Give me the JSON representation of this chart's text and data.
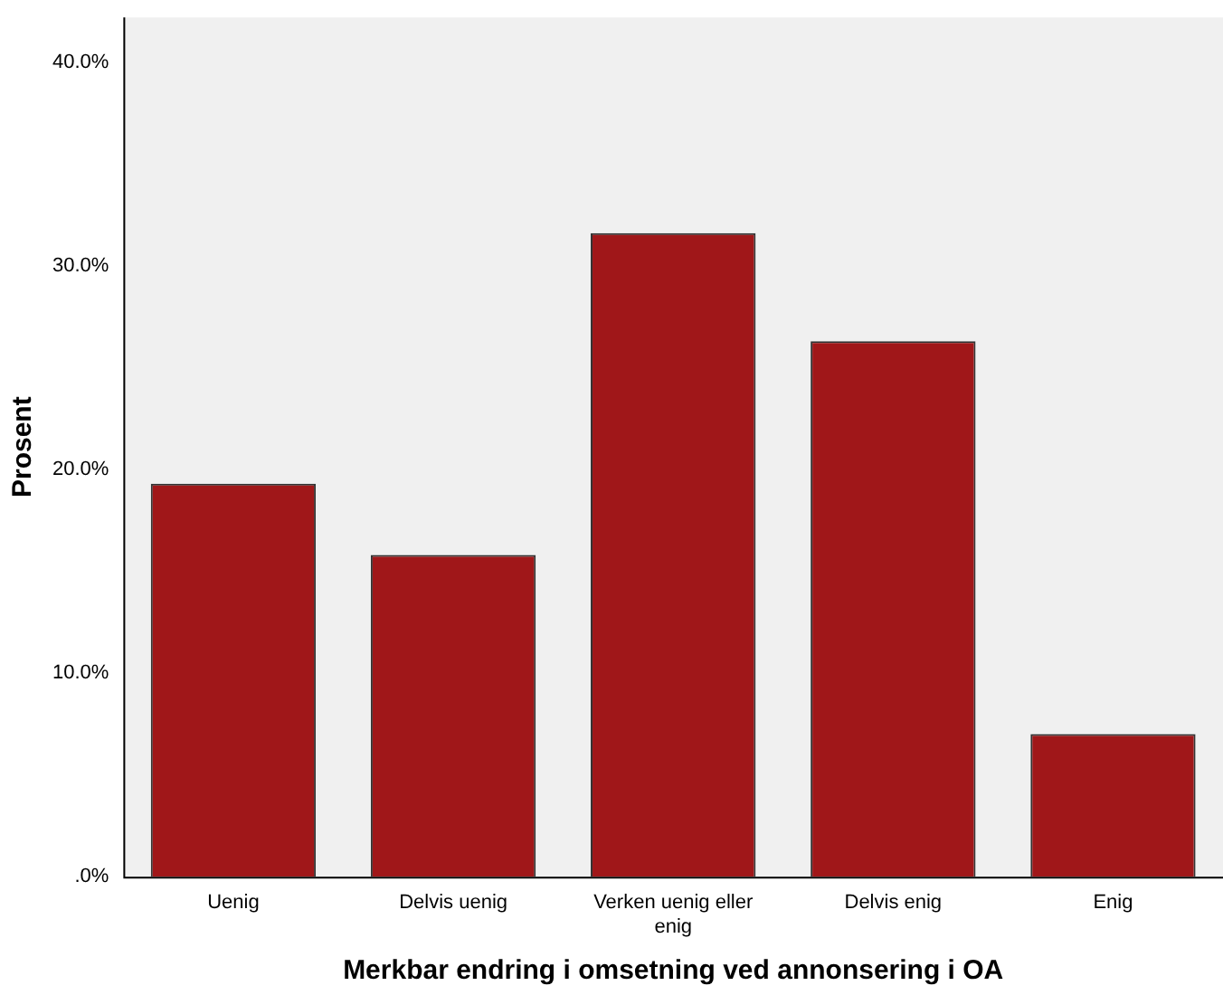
{
  "chart_data": {
    "type": "bar",
    "xlabel": "Merkbar endring i omsetning ved annonsering i OA",
    "ylabel": "Prosent",
    "categories": [
      "Uenig",
      "Delvis uenig",
      "Verken uenig eller enig",
      "Delvis enig",
      "Enig"
    ],
    "values": [
      19.3,
      15.8,
      31.6,
      26.3,
      7.0
    ],
    "color": "#a01719",
    "ylim": [
      0,
      42.2
    ],
    "yticks": [
      {
        "value": 0,
        "label": ".0%"
      },
      {
        "value": 10,
        "label": "10.0%"
      },
      {
        "value": 20,
        "label": "20.0%"
      },
      {
        "value": 30,
        "label": "30.0%"
      },
      {
        "value": 40,
        "label": "40.0%"
      }
    ],
    "grid": false,
    "legend": false
  }
}
